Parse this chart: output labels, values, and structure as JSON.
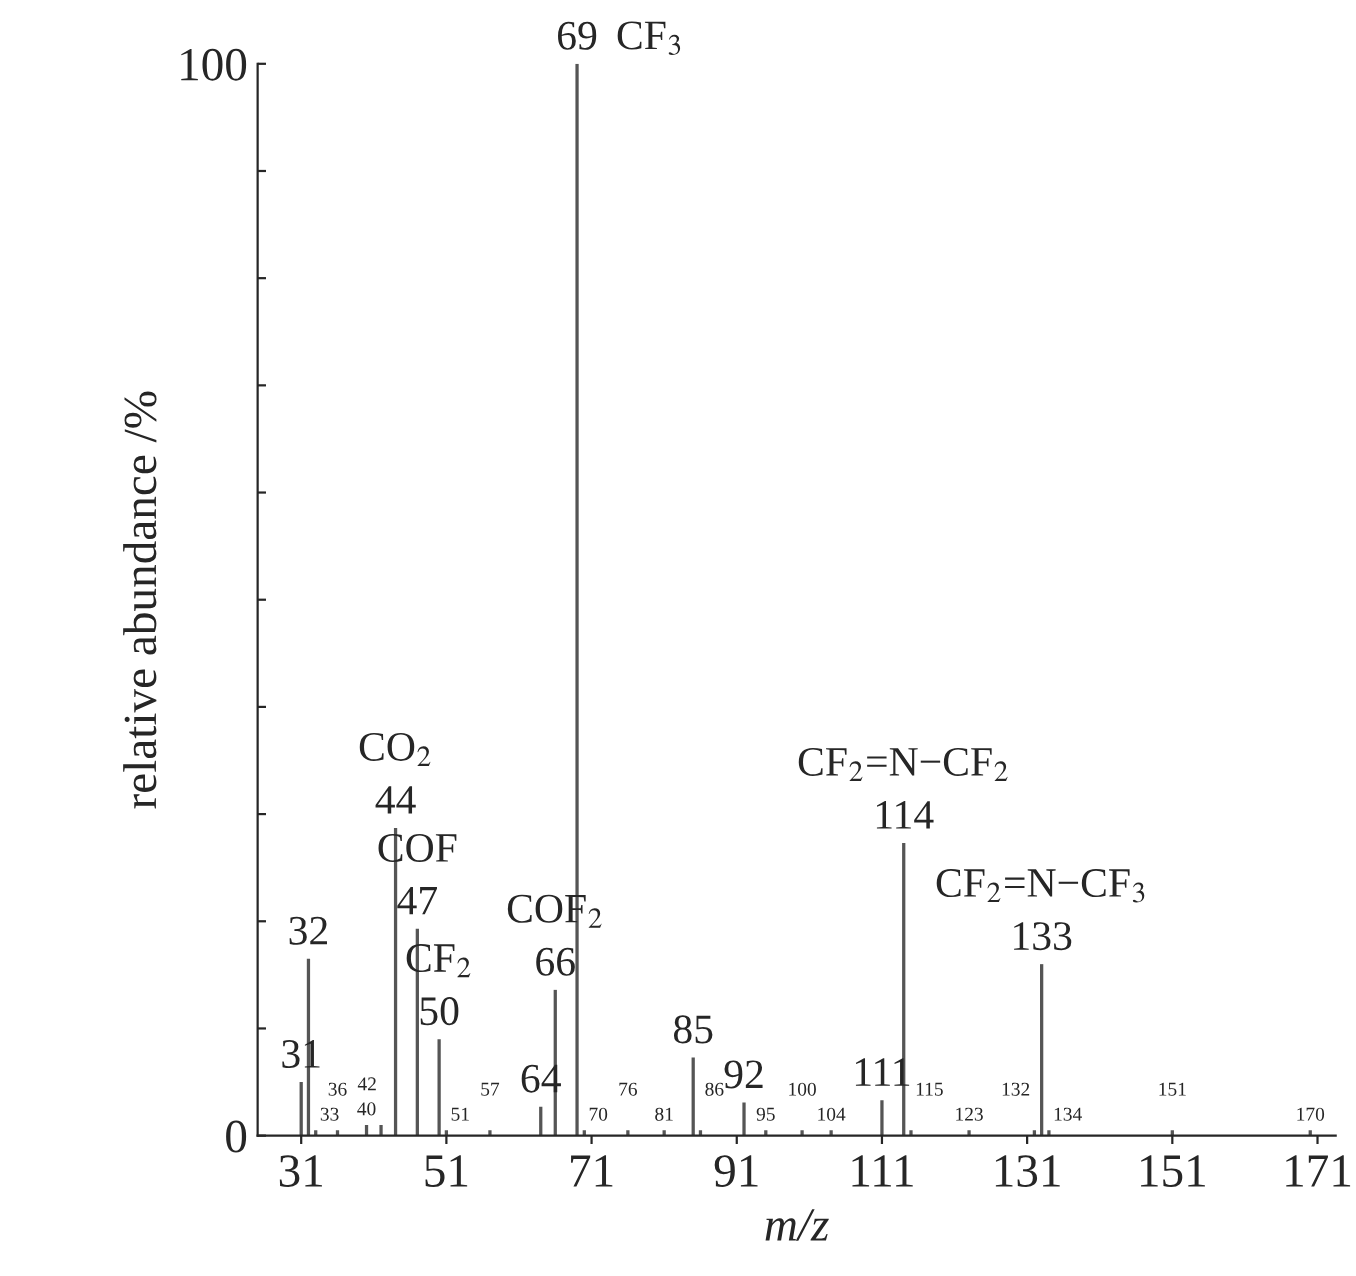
{
  "chart_data": {
    "type": "bar",
    "xlabel": "m/z",
    "ylabel": "relative abundance /%",
    "color": "#555555",
    "x": [
      31,
      32,
      33,
      36,
      40,
      42,
      44,
      47,
      50,
      51,
      57,
      64,
      66,
      69,
      70,
      76,
      81,
      85,
      86,
      92,
      95,
      100,
      104,
      111,
      114,
      115,
      123,
      132,
      133,
      134,
      151,
      170
    ],
    "values": [
      5,
      16.5,
      0.5,
      0.5,
      1,
      1,
      28.7,
      19.3,
      9,
      0.5,
      0.5,
      2.7,
      13.6,
      100,
      0.5,
      0.5,
      0.5,
      7.3,
      0.5,
      3.1,
      0.5,
      0.5,
      0.5,
      3.3,
      27.3,
      0.5,
      0.5,
      0.5,
      16,
      0.5,
      0.5,
      0.5
    ],
    "xlim": [
      25,
      173.5
    ],
    "xticks": [
      31,
      51,
      71,
      91,
      111,
      131,
      151,
      171
    ],
    "ylim": [
      0,
      100
    ],
    "yticks": [
      0,
      {
        "value": 10,
        "label": null
      },
      {
        "value": 20,
        "label": null
      },
      {
        "value": 30,
        "label": null
      },
      {
        "value": 40,
        "label": null
      },
      {
        "value": 50,
        "label": null
      },
      {
        "value": 60,
        "label": null
      },
      {
        "value": 70,
        "label": null
      },
      {
        "value": 80,
        "label": null
      },
      {
        "value": 90,
        "label": null
      },
      100
    ],
    "grid": false,
    "annotations": [
      {
        "text": "31",
        "x": 31,
        "y": 5
      },
      {
        "text": "32",
        "x": 32,
        "y": 16.5
      },
      {
        "text": "33",
        "x": 33,
        "y": 0.5
      },
      {
        "text": "36",
        "x": 36,
        "y": 0.5
      },
      {
        "text": "40",
        "x": 40,
        "y": 1
      },
      {
        "text": "42",
        "x": 42,
        "y": 1
      },
      {
        "text": "44",
        "x": 44,
        "y": 28.7
      },
      {
        "text": "CO$_{2}$",
        "x": 44,
        "y": 28.7
      },
      {
        "text": "47",
        "x": 47,
        "y": 19.3
      },
      {
        "text": "COF",
        "x": 47,
        "y": 19.3
      },
      {
        "text": "50",
        "x": 50,
        "y": 9
      },
      {
        "text": "CF$_{2}$",
        "x": 50,
        "y": 9
      },
      {
        "text": "51",
        "x": 51,
        "y": 0.5
      },
      {
        "text": "57",
        "x": 57,
        "y": 0.5
      },
      {
        "text": "64",
        "x": 64,
        "y": 2.7
      },
      {
        "text": "66",
        "x": 66,
        "y": 13.6
      },
      {
        "text": "COF$_{2}$",
        "x": 66,
        "y": 13.6
      },
      {
        "text": "69",
        "x": 69,
        "y": 100
      },
      {
        "text": "CF$_{3}$",
        "x": 69,
        "y": 100
      },
      {
        "text": "70",
        "x": 70,
        "y": 0.5
      },
      {
        "text": "76",
        "x": 76,
        "y": 0.5
      },
      {
        "text": "81",
        "x": 81,
        "y": 0.5
      },
      {
        "text": "85",
        "x": 85,
        "y": 7.3
      },
      {
        "text": "86",
        "x": 86,
        "y": 0.5
      },
      {
        "text": "92",
        "x": 92,
        "y": 3.1
      },
      {
        "text": "95",
        "x": 95,
        "y": 0.5
      },
      {
        "text": "100",
        "x": 100,
        "y": 0.5
      },
      {
        "text": "104",
        "x": 104,
        "y": 0.5
      },
      {
        "text": "111",
        "x": 111,
        "y": 3.3
      },
      {
        "text": "114",
        "x": 114,
        "y": 27.3
      },
      {
        "text": "CF$_{2}$=N−CF$_{2}$",
        "x": 114,
        "y": 27.3
      },
      {
        "text": "115",
        "x": 115,
        "y": 0.5
      },
      {
        "text": "123",
        "x": 123,
        "y": 0.5
      },
      {
        "text": "132",
        "x": 132,
        "y": 0.5
      },
      {
        "text": "133",
        "x": 133,
        "y": 16
      },
      {
        "text": "CF$_{2}$=N−CF$_{3}$",
        "x": 133,
        "y": 16
      },
      {
        "text": "134",
        "x": 134,
        "y": 0.5
      },
      {
        "text": "151",
        "x": 151,
        "y": 0.5
      },
      {
        "text": "170",
        "x": 170,
        "y": 0.5
      }
    ]
  }
}
